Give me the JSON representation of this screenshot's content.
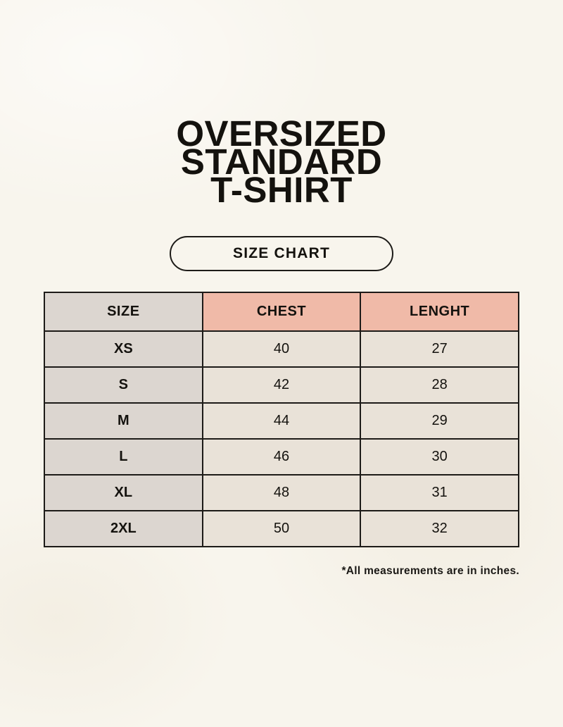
{
  "title": {
    "lines": [
      "OVERSIZED",
      "STANDARD",
      "T-SHIRT"
    ]
  },
  "size_chart_button": {
    "label": "SIZE CHART"
  },
  "table": {
    "headers": [
      "SIZE",
      "CHEST",
      "LENGHT"
    ],
    "rows": [
      [
        "XS",
        "40",
        "27"
      ],
      [
        "S",
        "42",
        "28"
      ],
      [
        "M",
        "44",
        "29"
      ],
      [
        "L",
        "46",
        "30"
      ],
      [
        "XL",
        "48",
        "31"
      ],
      [
        "2XL",
        "50",
        "32"
      ]
    ]
  },
  "footnote": "*All measurements are in inches.",
  "colors": {
    "bg": "#f8f5ed",
    "cell_grey": "#dcd6d0",
    "cell_cream": "#e9e2d8",
    "header_pink": "#f0baa8",
    "border_dark": "#1d1b18",
    "text_dark": "#14120e"
  }
}
